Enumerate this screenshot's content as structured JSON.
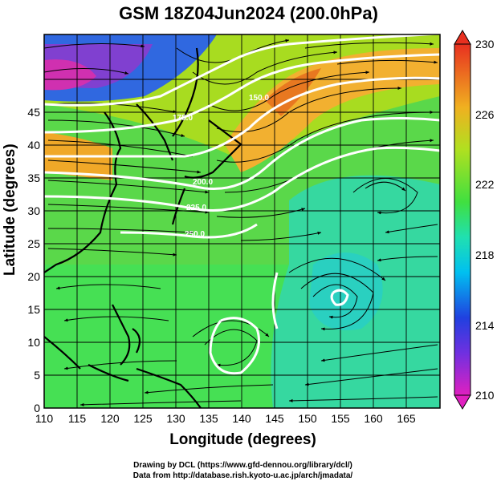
{
  "title": "GSM 18Z04Jun2024 (200.0hPa)",
  "axes": {
    "xlabel": "Longitude (degrees)",
    "ylabel": "Latitude (degrees)",
    "x_ticks": [
      "110",
      "115",
      "120",
      "125",
      "130",
      "135",
      "140",
      "145",
      "150",
      "155",
      "160",
      "165"
    ],
    "y_ticks": [
      "0",
      "5",
      "10",
      "15",
      "20",
      "25",
      "30",
      "35",
      "40",
      "45"
    ],
    "xlim": [
      110,
      170
    ],
    "ylim": [
      0,
      50
    ]
  },
  "colorbar": {
    "ticks": [
      "210",
      "214",
      "218",
      "222",
      "226",
      "230"
    ],
    "range": [
      210,
      230
    ]
  },
  "contour_labels": [
    "250.0",
    "225.0",
    "200.0",
    "175.0",
    "150.0"
  ],
  "credits": {
    "line1": "Drawing by DCL (https://www.gfd-dennou.org/library/dcl/)",
    "line2": "Data from http://database.rish.kyoto-u.ac.jp/arch/jmadata/"
  }
}
